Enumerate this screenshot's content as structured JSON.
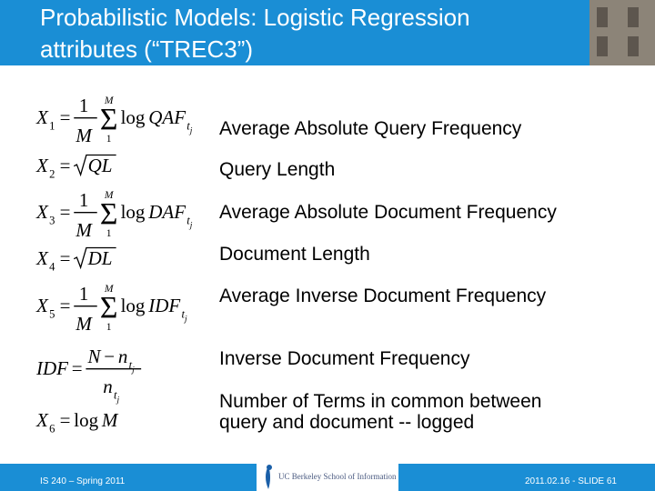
{
  "header": {
    "title": [
      "Probabilistic Models: Logistic Regression",
      "attributes (“TREC3”)"
    ]
  },
  "items": [
    {
      "formula": [
        {
          "text": "X",
          "italic": true
        },
        {
          "sub": "1"
        },
        {
          "text": "="
        },
        {
          "frac": {
            "num": [
              {
                "text": "1"
              }
            ],
            "den": [
              {
                "text": "M",
                "italic": true
              }
            ]
          }
        },
        {
          "sum": "Σ",
          "top": "M",
          "bottom": "1"
        },
        {
          "text": "log"
        },
        {
          "text": "QAF",
          "italic": true
        },
        {
          "sub": "t",
          "subsub": "j"
        }
      ],
      "description": [
        "Average Absolute Query Frequency"
      ]
    },
    {
      "formula": [
        {
          "text": "X",
          "italic": true
        },
        {
          "sub": "2"
        },
        {
          "text": "="
        },
        {
          "sqrt": [
            {
              "text": "QL",
              "italic": true
            }
          ]
        }
      ],
      "description": [
        "Query Length"
      ]
    },
    {
      "formula": [
        {
          "text": "X",
          "italic": true
        },
        {
          "sub": "3"
        },
        {
          "text": "="
        },
        {
          "frac": {
            "num": [
              {
                "text": "1"
              }
            ],
            "den": [
              {
                "text": "M",
                "italic": true
              }
            ]
          }
        },
        {
          "sum": "Σ",
          "top": "M",
          "bottom": "1"
        },
        {
          "text": "log"
        },
        {
          "text": "DAF",
          "italic": true
        },
        {
          "sub": "t",
          "subsub": "j"
        }
      ],
      "description": [
        "Average Absolute Document Frequency"
      ]
    },
    {
      "formula": [
        {
          "text": "X",
          "italic": true
        },
        {
          "sub": "4"
        },
        {
          "text": "="
        },
        {
          "sqrt": [
            {
              "text": "DL",
              "italic": true
            }
          ]
        }
      ],
      "description": [
        "Document Length"
      ]
    },
    {
      "formula": [
        {
          "text": "X",
          "italic": true
        },
        {
          "sub": "5"
        },
        {
          "text": "="
        },
        {
          "frac": {
            "num": [
              {
                "text": "1"
              }
            ],
            "den": [
              {
                "text": "M",
                "italic": true
              }
            ]
          }
        },
        {
          "sum": "Σ",
          "top": "M",
          "bottom": "1"
        },
        {
          "text": "log"
        },
        {
          "text": "IDF",
          "italic": true
        },
        {
          "sub": "t",
          "subsub": "j"
        }
      ],
      "description": [
        "Average Inverse Document Frequency"
      ]
    },
    {
      "formula": [
        {
          "text": "IDF",
          "italic": true
        },
        {
          "text": "="
        },
        {
          "frac": {
            "num": [
              {
                "text": "N",
                "italic": true
              },
              {
                "text": "−"
              },
              {
                "text": "n",
                "italic": true
              },
              {
                "sub": "t",
                "subsub": "j"
              }
            ],
            "den": [
              {
                "text": "n",
                "italic": true
              },
              {
                "sub": "t",
                "subsub": "j"
              }
            ]
          }
        }
      ],
      "description": [
        "Inverse Document Frequency"
      ]
    },
    {
      "formula": [
        {
          "text": "X",
          "italic": true
        },
        {
          "sub": "6"
        },
        {
          "text": "="
        },
        {
          "text": "log"
        },
        {
          "text": "M",
          "italic": true
        }
      ],
      "description": [
        "Number of Terms in common between",
        "query and document -- logged"
      ]
    }
  ],
  "footer": {
    "left": "IS 240 – Spring 2011",
    "logo": "UC Berkeley School of Information",
    "right": "2011.02.16 - SLIDE 61"
  }
}
